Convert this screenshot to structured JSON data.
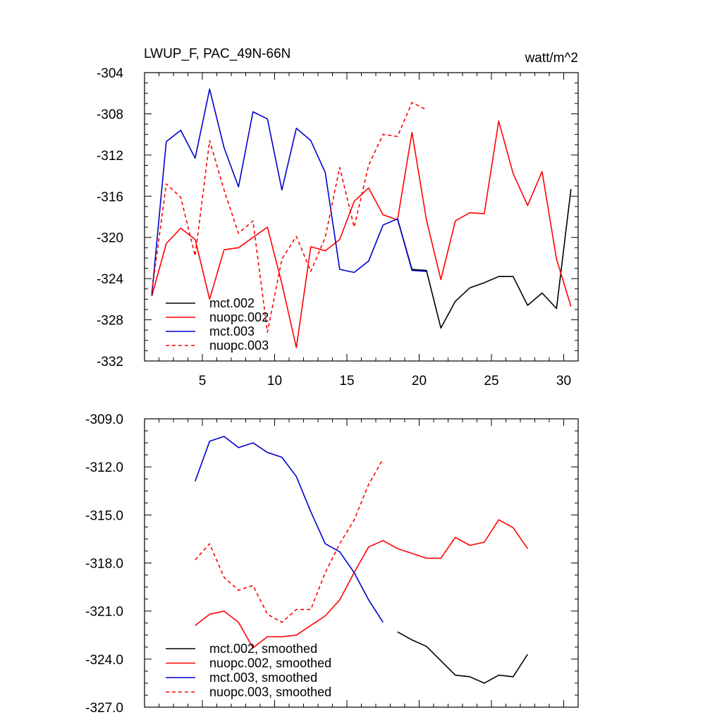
{
  "title": "LWUP_F, PAC_49N-66N",
  "units": "watt/m^2",
  "colors": {
    "mct002": "#000000",
    "nuopc002": "#ff0000",
    "mct003": "#0000cc",
    "nuopc003": "#ff0000"
  },
  "chart_data": [
    {
      "type": "line",
      "xlim": [
        1,
        31
      ],
      "ylim": [
        -332,
        -304
      ],
      "x_ticks": [
        5,
        10,
        15,
        20,
        25,
        30
      ],
      "x_tick_labels": [
        "5",
        "10",
        "15",
        "20",
        "25",
        "30"
      ],
      "y_ticks": [
        -304,
        -308,
        -312,
        -316,
        -320,
        -324,
        -328,
        -332
      ],
      "y_tick_labels": [
        "-304",
        "-308",
        "-312",
        "-316",
        "-320",
        "-324",
        "-328",
        "-332"
      ],
      "legend_position": "bottom-left",
      "series": [
        {
          "name": "mct.002",
          "color": "#000000",
          "dash": "solid",
          "x": [
            18.5,
            19.5,
            20.5,
            21.5,
            22.5,
            23.5,
            24.5,
            25.5,
            26.5,
            27.5,
            28.5,
            29.5,
            30.5
          ],
          "y": [
            -318.2,
            -323.1,
            -323.2,
            -328.8,
            -326.2,
            -324.9,
            -324.4,
            -323.8,
            -323.8,
            -326.6,
            -325.4,
            -326.9,
            -315.3
          ]
        },
        {
          "name": "nuopc.002",
          "color": "#ff0000",
          "dash": "solid",
          "x": [
            1.5,
            2.5,
            3.5,
            4.5,
            5.5,
            6.5,
            7.5,
            8.5,
            9.5,
            10.5,
            11.5,
            12.5,
            13.5,
            14.5,
            15.5,
            16.5,
            17.5,
            18.5,
            19.5,
            20.5,
            21.5,
            22.5,
            23.5,
            24.5,
            25.5,
            26.5,
            27.5,
            28.5,
            29.5,
            30.5
          ],
          "y": [
            -325.7,
            -320.6,
            -319.1,
            -320.2,
            -326.0,
            -321.2,
            -321.0,
            -320.0,
            -319.0,
            -324.5,
            -330.7,
            -320.9,
            -321.3,
            -320.2,
            -316.5,
            -315.2,
            -317.8,
            -318.3,
            -309.8,
            -318.3,
            -324.1,
            -318.4,
            -317.6,
            -317.7,
            -308.7,
            -313.8,
            -316.9,
            -313.6,
            -322.1,
            -326.7
          ]
        },
        {
          "name": "mct.003",
          "color": "#0000cc",
          "dash": "solid",
          "x": [
            1.5,
            2.5,
            3.5,
            4.5,
            5.5,
            6.5,
            7.5,
            8.5,
            9.5,
            10.5,
            11.5,
            12.5,
            13.5,
            14.5,
            15.5,
            16.5,
            17.5,
            18.5,
            19.5,
            20.5
          ],
          "y": [
            -325.6,
            -310.7,
            -309.6,
            -312.3,
            -305.6,
            -311.3,
            -315.1,
            -307.8,
            -308.5,
            -315.4,
            -309.4,
            -310.6,
            -313.7,
            -323.1,
            -323.4,
            -322.3,
            -318.8,
            -318.2,
            -323.2,
            -323.3
          ]
        },
        {
          "name": "nuopc.003",
          "color": "#ff0000",
          "dash": "dashed",
          "x": [
            1.5,
            2.5,
            3.5,
            4.5,
            5.5,
            6.5,
            7.5,
            8.5,
            9.5,
            10.5,
            11.5,
            12.5,
            13.5,
            14.5,
            15.5,
            16.5,
            17.5,
            18.5,
            19.5,
            20.5
          ],
          "y": [
            -325.3,
            -314.8,
            -316.1,
            -321.8,
            -310.6,
            -315.4,
            -319.6,
            -318.4,
            -329.2,
            -322.1,
            -319.9,
            -323.3,
            -320.0,
            -313.2,
            -319.0,
            -313.0,
            -310.0,
            -310.2,
            -306.9,
            -307.6
          ]
        }
      ]
    },
    {
      "type": "line",
      "xlim": [
        1,
        31
      ],
      "ylim": [
        -327.0,
        -309.0
      ],
      "x_ticks": [
        5,
        10,
        15,
        20,
        25,
        30
      ],
      "x_tick_labels": [],
      "y_ticks": [
        -309.0,
        -312.0,
        -315.0,
        -318.0,
        -321.0,
        -324.0,
        -327.0
      ],
      "y_tick_labels": [
        "-309.0",
        "-312.0",
        "-315.0",
        "-318.0",
        "-321.0",
        "-324.0",
        "-327.0"
      ],
      "legend_position": "bottom-left",
      "series": [
        {
          "name": "mct.002, smoothed",
          "color": "#000000",
          "dash": "solid",
          "x": [
            18.5,
            19.5,
            20.5,
            21.5,
            22.5,
            23.5,
            24.5,
            25.5,
            26.5,
            27.5
          ],
          "y": [
            -322.3,
            -322.8,
            -323.2,
            -324.1,
            -325.0,
            -325.1,
            -325.5,
            -325.0,
            -325.1,
            -323.7
          ]
        },
        {
          "name": "nuopc.002, smoothed",
          "color": "#ff0000",
          "dash": "solid",
          "x": [
            4.5,
            5.5,
            6.5,
            7.5,
            8.5,
            9.5,
            10.5,
            11.5,
            12.5,
            13.5,
            14.5,
            15.5,
            16.5,
            17.5,
            18.5,
            19.5,
            20.5,
            21.5,
            22.5,
            23.5,
            24.5,
            25.5,
            26.5,
            27.5
          ],
          "y": [
            -321.9,
            -321.2,
            -321.0,
            -321.7,
            -323.3,
            -322.6,
            -322.6,
            -322.5,
            -321.9,
            -321.3,
            -320.3,
            -318.6,
            -317.0,
            -316.6,
            -317.1,
            -317.4,
            -317.7,
            -317.7,
            -316.4,
            -316.9,
            -316.7,
            -315.3,
            -315.8,
            -317.1
          ]
        },
        {
          "name": "mct.003, smoothed",
          "color": "#0000cc",
          "dash": "solid",
          "x": [
            4.5,
            5.5,
            6.5,
            7.5,
            8.5,
            9.5,
            10.5,
            11.5,
            12.5,
            13.5,
            14.5,
            15.5,
            16.5,
            17.5
          ],
          "y": [
            -312.9,
            -310.4,
            -310.1,
            -310.8,
            -310.5,
            -311.1,
            -311.4,
            -312.6,
            -314.8,
            -316.8,
            -317.3,
            -318.6,
            -320.3,
            -321.7
          ]
        },
        {
          "name": "nuopc.003, smoothed",
          "color": "#ff0000",
          "dash": "dashed",
          "x": [
            4.5,
            5.5,
            6.5,
            7.5,
            8.5,
            9.5,
            10.5,
            11.5,
            12.5,
            13.5,
            14.5,
            15.5,
            16.5,
            17.5
          ],
          "y": [
            -317.8,
            -316.8,
            -318.9,
            -319.7,
            -319.4,
            -321.2,
            -321.7,
            -320.9,
            -320.9,
            -318.6,
            -316.8,
            -315.3,
            -313.1,
            -311.5
          ]
        }
      ]
    }
  ]
}
